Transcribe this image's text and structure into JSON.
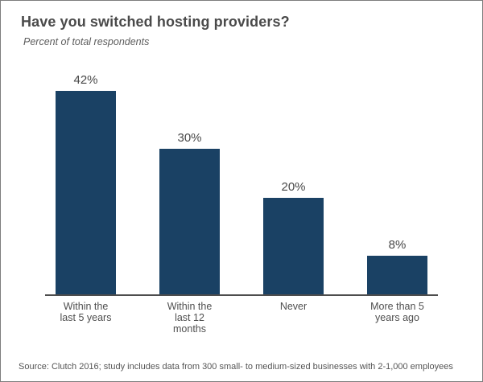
{
  "chart_data": {
    "type": "bar",
    "title": "Have you switched hosting providers?",
    "subtitle": "Percent of total respondents",
    "categories": [
      "Within the\nlast 5 years",
      "Within the\nlast 12\nmonths",
      "Never",
      "More than 5\nyears ago"
    ],
    "values": [
      42,
      30,
      20,
      8
    ],
    "value_labels": [
      "42%",
      "30%",
      "20%",
      "8%"
    ],
    "unit": "percent of total respondents",
    "ylim": [
      0,
      45
    ],
    "grid": false,
    "legend": false,
    "bar_color": "#1a4164",
    "axis_color": "#4d4d4d",
    "source_note": "Source: Clutch 2016; study includes data from 300 small- to medium-sized businesses with 2-1,000 employees"
  }
}
